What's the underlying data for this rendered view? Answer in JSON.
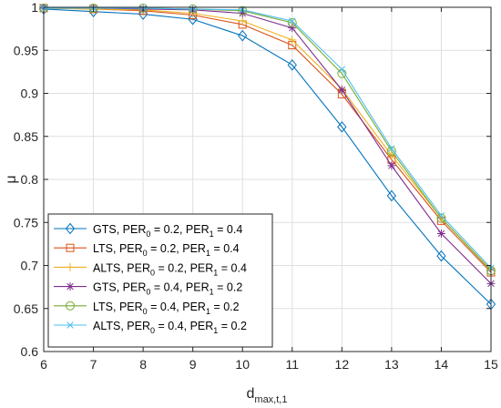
{
  "chart_data": {
    "type": "line",
    "xlabel": "d",
    "xlabel_sub": "max,t,1",
    "ylabel": "μ",
    "x": [
      6,
      7,
      8,
      9,
      10,
      11,
      12,
      13,
      14,
      15
    ],
    "xlim": [
      6,
      15
    ],
    "ylim": [
      0.6,
      1.0
    ],
    "xticks": [
      "6",
      "7",
      "8",
      "9",
      "10",
      "11",
      "12",
      "13",
      "14",
      "15"
    ],
    "yticks": [
      "0.6",
      "0.65",
      "0.7",
      "0.75",
      "0.8",
      "0.85",
      "0.9",
      "0.95",
      "1"
    ],
    "yticks_values": [
      0.6,
      0.65,
      0.7,
      0.75,
      0.8,
      0.85,
      0.9,
      0.95,
      1.0
    ],
    "grid": true,
    "legend_position": "bottom-left",
    "series": [
      {
        "name": "GTS, PER0 = 0.2, PER1 = 0.4",
        "color": "#0072BD",
        "marker": "diamond",
        "legend": [
          "GTS, PER",
          "0",
          " = 0.2, PER",
          "1",
          " = 0.4"
        ],
        "values": [
          0.998,
          0.995,
          0.992,
          0.986,
          0.967,
          0.933,
          0.861,
          0.781,
          0.711,
          0.655
        ]
      },
      {
        "name": "LTS, PER0 = 0.2, PER1 = 0.4",
        "color": "#D95319",
        "marker": "square",
        "legend": [
          "LTS, PER",
          "0",
          " = 0.2, PER",
          "1",
          " = 0.4"
        ],
        "values": [
          0.999,
          0.998,
          0.996,
          0.991,
          0.98,
          0.956,
          0.899,
          0.823,
          0.752,
          0.692
        ]
      },
      {
        "name": "ALTS, PER0 = 0.2, PER1 = 0.4",
        "color": "#EDB120",
        "marker": "plus",
        "legend": [
          "ALTS, PER",
          "0",
          " = 0.2, PER",
          "1",
          " = 0.4"
        ],
        "values": [
          0.999,
          0.998,
          0.997,
          0.993,
          0.984,
          0.962,
          0.905,
          0.828,
          0.755,
          0.695
        ]
      },
      {
        "name": "GTS, PER0 = 0.4, PER1 = 0.2",
        "color": "#7E2F8E",
        "marker": "asterisk",
        "legend": [
          "GTS, PER",
          "0",
          " = 0.4, PER",
          "1",
          " = 0.2"
        ],
        "values": [
          0.999,
          0.999,
          0.998,
          0.997,
          0.993,
          0.976,
          0.904,
          0.816,
          0.737,
          0.679
        ]
      },
      {
        "name": "LTS, PER0 = 0.4, PER1 = 0.2",
        "color": "#77AC30",
        "marker": "circle",
        "legend": [
          "LTS, PER",
          "0",
          " = 0.4, PER",
          "1",
          " = 0.2"
        ],
        "values": [
          0.999,
          0.999,
          0.999,
          0.998,
          0.996,
          0.982,
          0.923,
          0.833,
          0.755,
          0.694
        ]
      },
      {
        "name": "ALTS, PER0 = 0.4, PER1 = 0.2",
        "color": "#4DBEEE",
        "marker": "x",
        "legend": [
          "ALTS, PER",
          "0",
          " = 0.4, PER",
          "1",
          " = 0.2"
        ],
        "values": [
          0.999,
          0.999,
          0.999,
          0.998,
          0.997,
          0.984,
          0.928,
          0.836,
          0.758,
          0.697
        ]
      }
    ]
  }
}
